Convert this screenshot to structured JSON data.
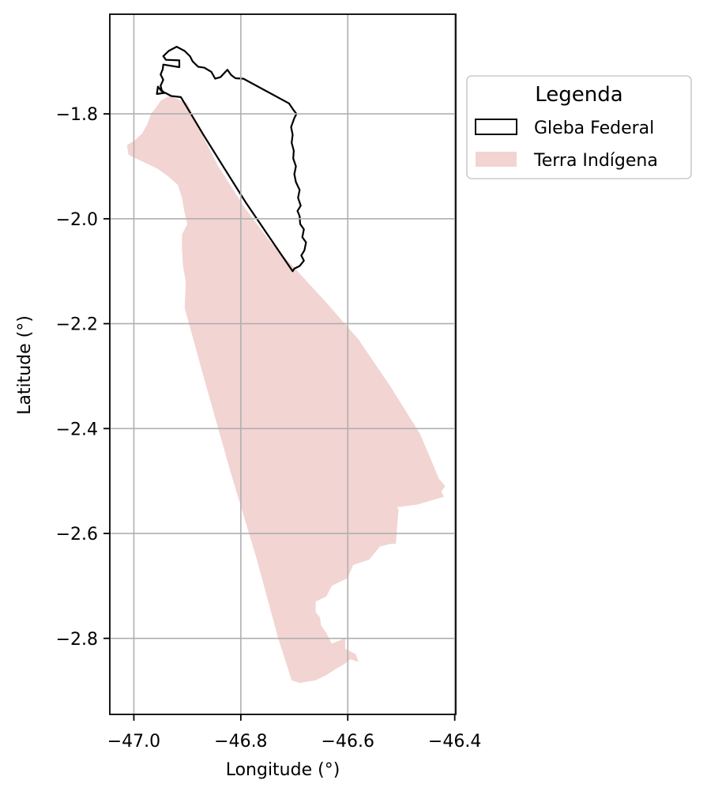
{
  "chart_data": {
    "type": "map",
    "xlabel": "Longitude (°)",
    "ylabel": "Latitude (°)",
    "xlim": [
      -47.045,
      -46.398
    ],
    "ylim": [
      -2.945,
      -1.61
    ],
    "xticks": [
      -47.0,
      -46.8,
      -46.6,
      -46.4
    ],
    "xtick_labels": [
      "−47.0",
      "−46.8",
      "−46.6",
      "−46.4"
    ],
    "yticks": [
      -1.8,
      -2.0,
      -2.2,
      -2.4,
      -2.6,
      -2.8
    ],
    "ytick_labels": [
      "−1.8",
      "−2.0",
      "−2.2",
      "−2.4",
      "−2.6",
      "−2.8"
    ],
    "grid": true,
    "legend": {
      "title": "Legenda",
      "placement": "upper-right-outside",
      "entries": [
        {
          "label": "Gleba Federal",
          "style": "outline",
          "edge_color": "#000000"
        },
        {
          "label": "Terra Indígena",
          "style": "fill",
          "fill_color": "#f2d4d3"
        }
      ]
    },
    "layers": [
      {
        "name": "Terra Indígena",
        "fill": "#f2d4d3",
        "coords": [
          [
            -46.933,
            -1.765
          ],
          [
            -46.9,
            -1.78
          ],
          [
            -46.872,
            -1.84
          ],
          [
            -46.842,
            -1.9
          ],
          [
            -46.792,
            -1.98
          ],
          [
            -46.744,
            -2.045
          ],
          [
            -46.703,
            -2.09
          ],
          [
            -46.64,
            -2.16
          ],
          [
            -46.58,
            -2.23
          ],
          [
            -46.52,
            -2.32
          ],
          [
            -46.465,
            -2.41
          ],
          [
            -46.44,
            -2.47
          ],
          [
            -46.43,
            -2.495
          ],
          [
            -46.418,
            -2.51
          ],
          [
            -46.425,
            -2.52
          ],
          [
            -46.42,
            -2.53
          ],
          [
            -46.47,
            -2.545
          ],
          [
            -46.508,
            -2.55
          ],
          [
            -46.505,
            -2.555
          ],
          [
            -46.508,
            -2.59
          ],
          [
            -46.51,
            -2.62
          ],
          [
            -46.52,
            -2.62
          ],
          [
            -46.54,
            -2.625
          ],
          [
            -46.548,
            -2.635
          ],
          [
            -46.56,
            -2.65
          ],
          [
            -46.59,
            -2.66
          ],
          [
            -46.6,
            -2.685
          ],
          [
            -46.63,
            -2.7
          ],
          [
            -46.64,
            -2.72
          ],
          [
            -46.66,
            -2.73
          ],
          [
            -46.66,
            -2.75
          ],
          [
            -46.652,
            -2.76
          ],
          [
            -46.65,
            -2.775
          ],
          [
            -46.64,
            -2.79
          ],
          [
            -46.63,
            -2.81
          ],
          [
            -46.605,
            -2.8
          ],
          [
            -46.605,
            -2.82
          ],
          [
            -46.585,
            -2.83
          ],
          [
            -46.58,
            -2.845
          ],
          [
            -46.595,
            -2.84
          ],
          [
            -46.605,
            -2.848
          ],
          [
            -46.625,
            -2.86
          ],
          [
            -46.64,
            -2.87
          ],
          [
            -46.66,
            -2.88
          ],
          [
            -46.69,
            -2.885
          ],
          [
            -46.705,
            -2.88
          ],
          [
            -46.73,
            -2.8
          ],
          [
            -46.77,
            -2.65
          ],
          [
            -46.82,
            -2.48
          ],
          [
            -46.87,
            -2.3
          ],
          [
            -46.905,
            -2.17
          ],
          [
            -46.903,
            -2.12
          ],
          [
            -46.908,
            -2.09
          ],
          [
            -46.91,
            -2.06
          ],
          [
            -46.91,
            -2.03
          ],
          [
            -46.9,
            -2.01
          ],
          [
            -46.905,
            -1.99
          ],
          [
            -46.91,
            -1.96
          ],
          [
            -46.918,
            -1.935
          ],
          [
            -46.935,
            -1.92
          ],
          [
            -46.955,
            -1.905
          ],
          [
            -46.975,
            -1.895
          ],
          [
            -46.99,
            -1.888
          ],
          [
            -47.01,
            -1.878
          ],
          [
            -47.013,
            -1.86
          ],
          [
            -46.998,
            -1.85
          ],
          [
            -46.985,
            -1.838
          ],
          [
            -46.975,
            -1.82
          ],
          [
            -46.968,
            -1.8
          ],
          [
            -46.96,
            -1.79
          ],
          [
            -46.95,
            -1.775
          ]
        ]
      },
      {
        "name": "Gleba Federal",
        "edge": "#000000",
        "coords": [
          [
            -46.957,
            -1.762
          ],
          [
            -46.955,
            -1.748
          ],
          [
            -46.948,
            -1.757
          ],
          [
            -46.941,
            -1.76
          ],
          [
            -46.93,
            -1.766
          ],
          [
            -46.912,
            -1.768
          ],
          [
            -46.87,
            -1.84
          ],
          [
            -46.83,
            -1.905
          ],
          [
            -46.79,
            -1.97
          ],
          [
            -46.75,
            -2.03
          ],
          [
            -46.703,
            -2.1
          ],
          [
            -46.7,
            -2.095
          ],
          [
            -46.69,
            -2.09
          ],
          [
            -46.682,
            -2.08
          ],
          [
            -46.687,
            -2.07
          ],
          [
            -46.681,
            -2.06
          ],
          [
            -46.678,
            -2.045
          ],
          [
            -46.685,
            -2.035
          ],
          [
            -46.682,
            -2.02
          ],
          [
            -46.689,
            -2.01
          ],
          [
            -46.69,
            -1.995
          ],
          [
            -46.694,
            -1.985
          ],
          [
            -46.688,
            -1.975
          ],
          [
            -46.693,
            -1.96
          ],
          [
            -46.69,
            -1.945
          ],
          [
            -46.697,
            -1.93
          ],
          [
            -46.7,
            -1.915
          ],
          [
            -46.697,
            -1.9
          ],
          [
            -46.702,
            -1.885
          ],
          [
            -46.701,
            -1.87
          ],
          [
            -46.705,
            -1.855
          ],
          [
            -46.703,
            -1.84
          ],
          [
            -46.706,
            -1.825
          ],
          [
            -46.7,
            -1.808
          ],
          [
            -46.696,
            -1.8
          ],
          [
            -46.702,
            -1.792
          ],
          [
            -46.71,
            -1.78
          ],
          [
            -46.795,
            -1.733
          ],
          [
            -46.81,
            -1.732
          ],
          [
            -46.818,
            -1.726
          ],
          [
            -46.825,
            -1.716
          ],
          [
            -46.838,
            -1.73
          ],
          [
            -46.848,
            -1.733
          ],
          [
            -46.855,
            -1.72
          ],
          [
            -46.868,
            -1.712
          ],
          [
            -46.88,
            -1.71
          ],
          [
            -46.89,
            -1.7
          ],
          [
            -46.895,
            -1.69
          ],
          [
            -46.905,
            -1.68
          ],
          [
            -46.92,
            -1.672
          ],
          [
            -46.935,
            -1.68
          ],
          [
            -46.945,
            -1.69
          ],
          [
            -46.94,
            -1.697
          ],
          [
            -46.915,
            -1.698
          ],
          [
            -46.915,
            -1.711
          ],
          [
            -46.945,
            -1.706
          ],
          [
            -46.946,
            -1.715
          ],
          [
            -46.95,
            -1.725
          ],
          [
            -46.945,
            -1.735
          ],
          [
            -46.95,
            -1.746
          ],
          [
            -46.948,
            -1.755
          ],
          [
            -46.943,
            -1.76
          ]
        ]
      }
    ]
  }
}
